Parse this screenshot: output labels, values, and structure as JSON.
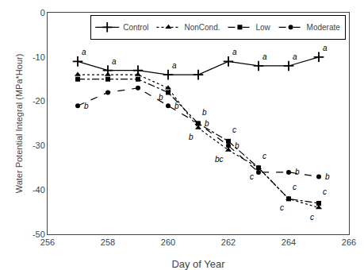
{
  "chart_data": {
    "type": "line",
    "x": [
      257,
      258,
      259,
      260,
      261,
      262,
      263,
      264,
      265
    ],
    "series": [
      {
        "name": "Control",
        "color": "black",
        "marker": "plus",
        "line_style": "solid",
        "values": [
          -11,
          -13,
          -13,
          -14,
          -14,
          -11,
          -12,
          -12,
          -10
        ],
        "annotations": [
          {
            "x": 257,
            "text": "a"
          },
          {
            "x": 258,
            "text": "a"
          },
          {
            "x": 260,
            "text": "a"
          },
          {
            "x": 262,
            "text": "a"
          },
          {
            "x": 263,
            "text": "a"
          },
          {
            "x": 264,
            "text": "a"
          },
          {
            "x": 265,
            "text": "a"
          }
        ]
      },
      {
        "name": "NonCond.",
        "color": "black",
        "marker": "triangle",
        "line_style": "dotted",
        "values": [
          -14,
          -14,
          -14,
          -17,
          -26,
          -31,
          -35,
          -42,
          -44
        ],
        "annotations": [
          {
            "x": 260,
            "text": "b"
          },
          {
            "x": 261,
            "text": "b"
          },
          {
            "x": 262,
            "text": "bc"
          },
          {
            "x": 263,
            "text": "c"
          },
          {
            "x": 264,
            "text": "c"
          },
          {
            "x": 265,
            "text": "c"
          }
        ]
      },
      {
        "name": "Low",
        "color": "black",
        "marker": "square",
        "line_style": "dashdot",
        "values": [
          -15,
          -15,
          -15,
          -18,
          -25,
          -29,
          -35,
          -42,
          -43
        ],
        "annotations": [
          {
            "x": 261,
            "text": "b"
          },
          {
            "x": 262,
            "text": "c"
          },
          {
            "x": 263,
            "text": "c"
          },
          {
            "x": 264,
            "text": "c"
          },
          {
            "x": 265,
            "text": "c"
          }
        ]
      },
      {
        "name": "Moderate",
        "color": "black",
        "marker": "circle",
        "line_style": "dashed",
        "values": [
          -21,
          -18,
          -17,
          -21,
          -25,
          -30,
          -36,
          -36,
          -37
        ],
        "annotations": [
          {
            "x": 257,
            "text": "b"
          },
          {
            "x": 260,
            "text": "b"
          },
          {
            "x": 261,
            "text": "b"
          },
          {
            "x": 262,
            "text": "b"
          },
          {
            "x": 264,
            "text": "b"
          },
          {
            "x": 265,
            "text": "b"
          }
        ]
      }
    ],
    "xlabel": "Day of Year",
    "ylabel": "Water Potential Integral (MPa*Hour)",
    "xlim": [
      256,
      266
    ],
    "ylim": [
      -50,
      0
    ],
    "xticks": [
      256,
      258,
      260,
      262,
      264,
      266
    ],
    "yticks": [
      0,
      -10,
      -20,
      -30,
      -40,
      -50
    ],
    "grid": false,
    "legend": "upper right"
  }
}
